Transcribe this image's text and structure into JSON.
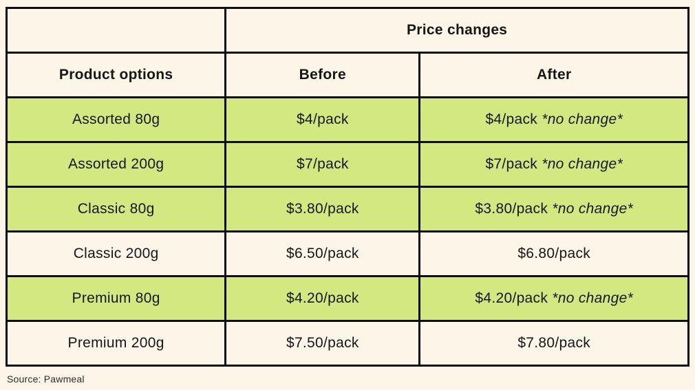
{
  "table": {
    "header_group": "Price changes",
    "columns": [
      "Product options",
      "Before",
      "After"
    ],
    "rows": [
      {
        "product": "Assorted 80g",
        "before": "$4/pack",
        "after": "$4/pack",
        "note": "*no change*",
        "highlight": true
      },
      {
        "product": "Assorted 200g",
        "before": "$7/pack",
        "after": "$7/pack",
        "note": "*no change*",
        "highlight": true
      },
      {
        "product": "Classic 80g",
        "before": "$3.80/pack",
        "after": "$3.80/pack",
        "note": "*no change*",
        "highlight": true
      },
      {
        "product": "Classic 200g",
        "before": "$6.50/pack",
        "after": "$6.80/pack",
        "note": "",
        "highlight": false
      },
      {
        "product": "Premium 80g",
        "before": "$4.20/pack",
        "after": "$4.20/pack",
        "note": "*no change*",
        "highlight": true
      },
      {
        "product": "Premium 200g",
        "before": "$7.50/pack",
        "after": "$7.80/pack",
        "note": "",
        "highlight": false
      }
    ]
  },
  "source": "Source: Pawmeal",
  "colors": {
    "background": "#fcf5e8",
    "highlight_row": "#d4e881",
    "border": "#0c0c0c",
    "text": "#161616"
  }
}
